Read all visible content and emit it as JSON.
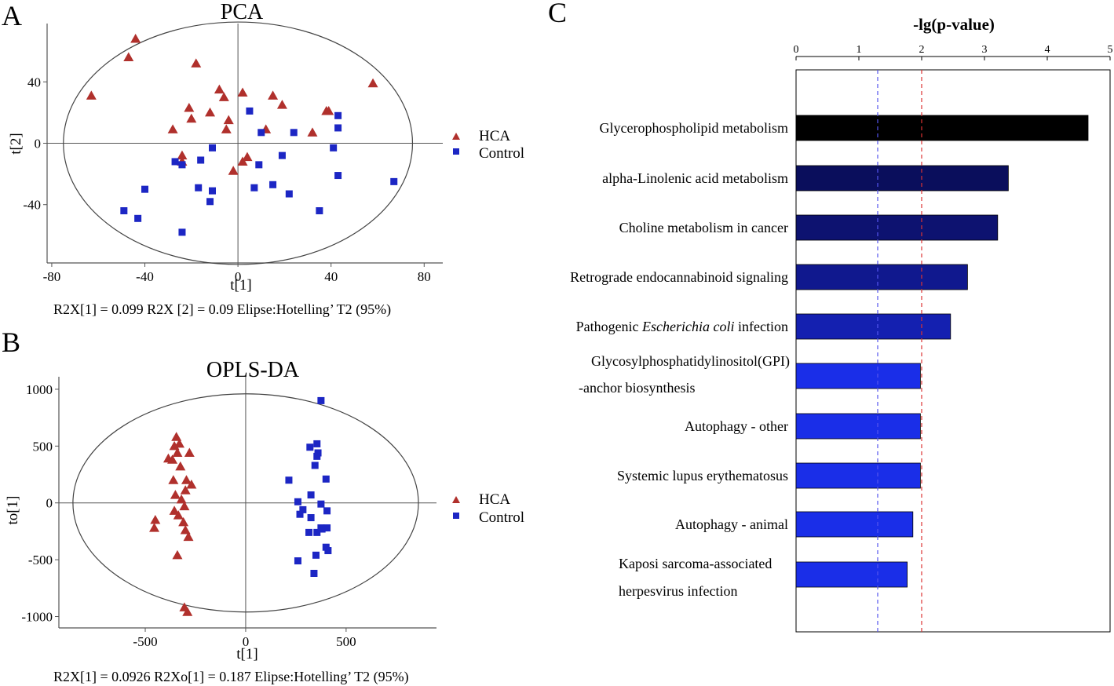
{
  "panel_letters": {
    "a": "A",
    "b": "B",
    "c": "C"
  },
  "colors": {
    "hca": "#b0302c",
    "control": "#1c26c4",
    "axis": "#555555",
    "ellipse": "#444444",
    "bar_dark": "#000000",
    "ref_blue": "#5555ee",
    "ref_red": "#dd3333"
  },
  "chart_data": [
    {
      "id": "pca",
      "type": "scatter",
      "title": "PCA",
      "xlabel": "t[1]",
      "ylabel": "t[2]",
      "xlim": [
        -82,
        88
      ],
      "ylim": [
        -78,
        78
      ],
      "xticks": [
        -80,
        -40,
        0,
        40,
        80
      ],
      "xtick_labels": [
        "-80",
        "-40",
        "0",
        "40",
        "80"
      ],
      "yticks": [
        40,
        0,
        -40
      ],
      "ytick_labels": [
        "40",
        "0",
        "-40"
      ],
      "ellipse": {
        "cx": 0,
        "cy": 0,
        "rx": 75,
        "ry": 79
      },
      "legend": [
        "HCA",
        "Control"
      ],
      "footnote": "R2X[1] = 0.099  R2X [2] = 0.09  Elipse:Hotelling’ T2 (95%)",
      "series": [
        {
          "name": "HCA",
          "marker": "triangle",
          "points": [
            [
              -44,
              68
            ],
            [
              -47,
              56
            ],
            [
              -18,
              52
            ],
            [
              -63,
              31
            ],
            [
              -21,
              23
            ],
            [
              -20,
              16
            ],
            [
              -28,
              9
            ],
            [
              -8,
              35
            ],
            [
              -6,
              30
            ],
            [
              -12,
              20
            ],
            [
              -4,
              15
            ],
            [
              -5,
              9
            ],
            [
              2,
              33
            ],
            [
              15,
              31
            ],
            [
              19,
              25
            ],
            [
              12,
              9
            ],
            [
              38,
              21
            ],
            [
              39,
              21
            ],
            [
              32,
              7
            ],
            [
              58,
              39
            ],
            [
              -24,
              -8
            ],
            [
              -24,
              -12
            ],
            [
              -2,
              -18
            ],
            [
              2,
              -12
            ],
            [
              4,
              -9
            ]
          ]
        },
        {
          "name": "Control",
          "marker": "square",
          "points": [
            [
              5,
              21
            ],
            [
              10,
              7
            ],
            [
              24,
              7
            ],
            [
              43,
              18
            ],
            [
              43,
              10
            ],
            [
              41,
              -3
            ],
            [
              -11,
              -3
            ],
            [
              -16,
              -11
            ],
            [
              -24,
              -14
            ],
            [
              -27,
              -12
            ],
            [
              19,
              -8
            ],
            [
              9,
              -14
            ],
            [
              -40,
              -30
            ],
            [
              -17,
              -29
            ],
            [
              -11,
              -31
            ],
            [
              -12,
              -38
            ],
            [
              7,
              -29
            ],
            [
              15,
              -27
            ],
            [
              22,
              -33
            ],
            [
              -49,
              -44
            ],
            [
              -43,
              -49
            ],
            [
              -24,
              -58
            ],
            [
              35,
              -44
            ],
            [
              43,
              -21
            ],
            [
              67,
              -25
            ]
          ]
        }
      ]
    },
    {
      "id": "oplsda",
      "type": "scatter",
      "title": "OPLS-DA",
      "xlabel": "t[1]",
      "ylabel": "to[1]",
      "xlim": [
        -930,
        950
      ],
      "ylim": [
        -1100,
        1110
      ],
      "xticks": [
        -500,
        0,
        500
      ],
      "xtick_labels": [
        "-500",
        "0",
        "500"
      ],
      "yticks": [
        1000,
        500,
        0,
        -500,
        -1000
      ],
      "ytick_labels": [
        "1000",
        "500",
        "0",
        "-500",
        "-1000"
      ],
      "ellipse": {
        "cx": 0,
        "cy": 0,
        "rx": 860,
        "ry": 960
      },
      "legend": [
        "HCA",
        "Control"
      ],
      "footnote": "R2X[1] = 0.0926  R2Xo[1] = 0.187  Elipse:Hotelling’ T2 (95%)",
      "series": [
        {
          "name": "HCA",
          "marker": "triangle",
          "points": [
            [
              -345,
              580
            ],
            [
              -355,
              500
            ],
            [
              -330,
              520
            ],
            [
              -280,
              440
            ],
            [
              -340,
              440
            ],
            [
              -385,
              390
            ],
            [
              -365,
              380
            ],
            [
              -325,
              320
            ],
            [
              -295,
              200
            ],
            [
              -270,
              160
            ],
            [
              -350,
              70
            ],
            [
              -300,
              110
            ],
            [
              -320,
              30
            ],
            [
              -355,
              -70
            ],
            [
              -305,
              -30
            ],
            [
              -335,
              -110
            ],
            [
              -450,
              -150
            ],
            [
              -455,
              -220
            ],
            [
              -310,
              -170
            ],
            [
              -300,
              -240
            ],
            [
              -285,
              -300
            ],
            [
              -340,
              -460
            ],
            [
              -305,
              -920
            ],
            [
              -290,
              -960
            ],
            [
              -360,
              200
            ]
          ]
        },
        {
          "name": "Control",
          "marker": "square",
          "points": [
            [
              375,
              900
            ],
            [
              355,
              520
            ],
            [
              320,
              490
            ],
            [
              360,
              440
            ],
            [
              355,
              410
            ],
            [
              345,
              330
            ],
            [
              215,
              200
            ],
            [
              400,
              210
            ],
            [
              325,
              70
            ],
            [
              260,
              10
            ],
            [
              375,
              -10
            ],
            [
              285,
              -60
            ],
            [
              270,
              -100
            ],
            [
              405,
              -70
            ],
            [
              325,
              -130
            ],
            [
              375,
              -220
            ],
            [
              405,
              -220
            ],
            [
              315,
              -260
            ],
            [
              355,
              -260
            ],
            [
              400,
              -390
            ],
            [
              410,
              -420
            ],
            [
              350,
              -460
            ],
            [
              260,
              -510
            ],
            [
              340,
              -620
            ],
            [
              380,
              -230
            ]
          ]
        }
      ]
    },
    {
      "id": "pathway",
      "type": "bar",
      "orientation": "horizontal",
      "title": "-lg(p-value)",
      "xlim": [
        0,
        5
      ],
      "xticks": [
        0,
        1,
        2,
        3,
        4,
        5
      ],
      "xtick_labels": [
        "0",
        "1",
        "2",
        "3",
        "4",
        "5"
      ],
      "reference_lines": [
        1.3,
        2.0
      ],
      "categories": [
        {
          "lines": [
            "Glycerophospholipid metabolism"
          ],
          "value": 4.65,
          "color": "#000000"
        },
        {
          "lines": [
            "alpha-Linolenic acid metabolism"
          ],
          "value": 3.38,
          "color": "#0a0e5c"
        },
        {
          "lines": [
            "Choline metabolism in cancer"
          ],
          "value": 3.21,
          "color": "#0d1270"
        },
        {
          "lines": [
            "Retrograde endocannabinoid signaling"
          ],
          "value": 2.73,
          "color": "#10188e"
        },
        {
          "pre": "Pathogenic ",
          "italic": "Escherichia coli",
          "post": " infection",
          "value": 2.46,
          "color": "#1420b0"
        },
        {
          "lines": [
            "Glycosylphosphatidylinositol(GPI)",
            "-anchor biosynthesis"
          ],
          "value": 1.98,
          "color": "#1a2ee8"
        },
        {
          "lines": [
            "Autophagy - other"
          ],
          "value": 1.98,
          "color": "#1a2ee8"
        },
        {
          "lines": [
            "Systemic lupus erythematosus"
          ],
          "value": 1.98,
          "color": "#1a2ee8"
        },
        {
          "lines": [
            "Autophagy - animal"
          ],
          "value": 1.86,
          "color": "#1a2ee8"
        },
        {
          "lines": [
            "Kaposi sarcoma-associated",
            "herpesvirus infection"
          ],
          "value": 1.77,
          "color": "#1a2ee8"
        }
      ]
    }
  ]
}
